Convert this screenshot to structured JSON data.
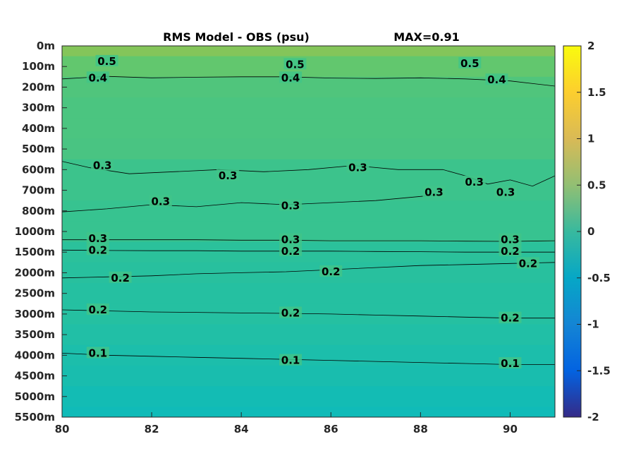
{
  "chart_data": {
    "type": "heatmap",
    "title": "RMS Model - OBS (psu)",
    "max_label": "MAX=0.91",
    "xlabel": "",
    "ylabel": "",
    "xlim": [
      80,
      91
    ],
    "x_ticks": [
      80,
      82,
      84,
      86,
      88,
      90
    ],
    "y_ticks": [
      "0m",
      "100m",
      "200m",
      "300m",
      "400m",
      "500m",
      "600m",
      "700m",
      "800m",
      "1000m",
      "1500m",
      "2000m",
      "2500m",
      "3000m",
      "3500m",
      "4000m",
      "4500m",
      "5000m",
      "5500m"
    ],
    "colorbar": {
      "ticks": [
        "2",
        "1.5",
        "1",
        "0.5",
        "0",
        "-0.5",
        "-1",
        "-1.5",
        "-2"
      ],
      "range": [
        -2,
        2
      ],
      "colormap": "parula"
    },
    "field_by_depth": [
      {
        "depth": "0m",
        "value": 0.62
      },
      {
        "depth": "100m",
        "value": 0.45
      },
      {
        "depth": "200m",
        "value": 0.38
      },
      {
        "depth": "300m",
        "value": 0.36
      },
      {
        "depth": "400m",
        "value": 0.36
      },
      {
        "depth": "500m",
        "value": 0.35
      },
      {
        "depth": "600m",
        "value": 0.3
      },
      {
        "depth": "700m",
        "value": 0.3
      },
      {
        "depth": "800m",
        "value": 0.28
      },
      {
        "depth": "1000m",
        "value": 0.28
      },
      {
        "depth": "1500m",
        "value": 0.22
      },
      {
        "depth": "2000m",
        "value": 0.2
      },
      {
        "depth": "2500m",
        "value": 0.18
      },
      {
        "depth": "3000m",
        "value": 0.18
      },
      {
        "depth": "3500m",
        "value": 0.15
      },
      {
        "depth": "4000m",
        "value": 0.12
      },
      {
        "depth": "4500m",
        "value": 0.1
      },
      {
        "depth": "5000m",
        "value": 0.06
      },
      {
        "depth": "5500m",
        "value": 0.04
      }
    ],
    "contour_labels": [
      {
        "text": "0.5",
        "x": 81.0,
        "depth_index": 0.75
      },
      {
        "text": "0.5",
        "x": 85.2,
        "depth_index": 0.9
      },
      {
        "text": "0.5",
        "x": 89.1,
        "depth_index": 0.85
      },
      {
        "text": "0.4",
        "x": 80.8,
        "depth_index": 1.55
      },
      {
        "text": "0.4",
        "x": 85.1,
        "depth_index": 1.55
      },
      {
        "text": "0.4",
        "x": 89.7,
        "depth_index": 1.65
      },
      {
        "text": "0.3",
        "x": 80.9,
        "depth_index": 5.8
      },
      {
        "text": "0.3",
        "x": 83.7,
        "depth_index": 6.3
      },
      {
        "text": "0.3",
        "x": 86.6,
        "depth_index": 5.9
      },
      {
        "text": "0.3",
        "x": 88.3,
        "depth_index": 7.1
      },
      {
        "text": "0.3",
        "x": 89.2,
        "depth_index": 6.6
      },
      {
        "text": "0.3",
        "x": 89.9,
        "depth_index": 7.1
      },
      {
        "text": "0.3",
        "x": 82.2,
        "depth_index": 7.55
      },
      {
        "text": "0.3",
        "x": 85.1,
        "depth_index": 7.75
      },
      {
        "text": "0.3",
        "x": 80.8,
        "depth_index": 9.35
      },
      {
        "text": "0.3",
        "x": 85.1,
        "depth_index": 9.4
      },
      {
        "text": "0.3",
        "x": 90.0,
        "depth_index": 9.4
      },
      {
        "text": "0.2",
        "x": 80.8,
        "depth_index": 9.9
      },
      {
        "text": "0.2",
        "x": 85.1,
        "depth_index": 9.95
      },
      {
        "text": "0.2",
        "x": 90.0,
        "depth_index": 9.95
      },
      {
        "text": "0.2",
        "x": 90.4,
        "depth_index": 10.55
      },
      {
        "text": "0.2",
        "x": 86.0,
        "depth_index": 10.95
      },
      {
        "text": "0.2",
        "x": 81.3,
        "depth_index": 11.25
      },
      {
        "text": "0.2",
        "x": 80.8,
        "depth_index": 12.8
      },
      {
        "text": "0.2",
        "x": 85.1,
        "depth_index": 12.95
      },
      {
        "text": "0.2",
        "x": 90.0,
        "depth_index": 13.2
      },
      {
        "text": "0.1",
        "x": 80.8,
        "depth_index": 14.9
      },
      {
        "text": "0.1",
        "x": 85.1,
        "depth_index": 15.25
      },
      {
        "text": "0.1",
        "x": 90.0,
        "depth_index": 15.4
      }
    ],
    "contour_lines": [
      {
        "level": 0.4,
        "points": [
          [
            80,
            1.6
          ],
          [
            81,
            1.48
          ],
          [
            82,
            1.55
          ],
          [
            83,
            1.52
          ],
          [
            84,
            1.5
          ],
          [
            85,
            1.5
          ],
          [
            86,
            1.56
          ],
          [
            87,
            1.58
          ],
          [
            88,
            1.55
          ],
          [
            89,
            1.6
          ],
          [
            90,
            1.7
          ],
          [
            91,
            1.95
          ]
        ]
      },
      {
        "level": 0.3,
        "points": [
          [
            80,
            5.6
          ],
          [
            80.6,
            5.9
          ],
          [
            81.5,
            6.2
          ],
          [
            82.5,
            6.1
          ],
          [
            83.5,
            6.0
          ],
          [
            84.5,
            6.1
          ],
          [
            85.5,
            6.0
          ],
          [
            86.5,
            5.8
          ],
          [
            87.5,
            6.0
          ],
          [
            88.5,
            6.0
          ],
          [
            89,
            6.3
          ],
          [
            89.5,
            6.7
          ],
          [
            90,
            6.5
          ],
          [
            90.5,
            6.8
          ],
          [
            91,
            6.3
          ]
        ]
      },
      {
        "level": 0.3,
        "points": [
          [
            80,
            8.05
          ],
          [
            81,
            7.9
          ],
          [
            82,
            7.7
          ],
          [
            83,
            7.8
          ],
          [
            84,
            7.6
          ],
          [
            85,
            7.7
          ],
          [
            86,
            7.6
          ],
          [
            87,
            7.5
          ],
          [
            88,
            7.3
          ],
          [
            88.5,
            7.2
          ]
        ]
      },
      {
        "level": 0.3,
        "points": [
          [
            80,
            9.4
          ],
          [
            81,
            9.4
          ],
          [
            82,
            9.4
          ],
          [
            83,
            9.4
          ],
          [
            84,
            9.42
          ],
          [
            85,
            9.42
          ],
          [
            86,
            9.45
          ],
          [
            87,
            9.45
          ],
          [
            88,
            9.45
          ],
          [
            89,
            9.47
          ],
          [
            90,
            9.48
          ],
          [
            91,
            9.45
          ]
        ]
      },
      {
        "level": 0.2,
        "points": [
          [
            80,
            9.9
          ],
          [
            81,
            9.92
          ],
          [
            82,
            9.93
          ],
          [
            83,
            9.93
          ],
          [
            84,
            9.95
          ],
          [
            85,
            9.95
          ],
          [
            86,
            9.95
          ],
          [
            87,
            9.97
          ],
          [
            88,
            9.98
          ],
          [
            89,
            10.0
          ],
          [
            90,
            10.0
          ],
          [
            91,
            10.0
          ]
        ]
      },
      {
        "level": 0.2,
        "points": [
          [
            80,
            11.25
          ],
          [
            81,
            11.2
          ],
          [
            82,
            11.15
          ],
          [
            83,
            11.05
          ],
          [
            84,
            11.0
          ],
          [
            85,
            10.95
          ],
          [
            86,
            10.85
          ],
          [
            87,
            10.75
          ],
          [
            88,
            10.65
          ],
          [
            89,
            10.6
          ],
          [
            90,
            10.55
          ],
          [
            91,
            10.5
          ]
        ]
      },
      {
        "level": 0.2,
        "points": [
          [
            80,
            12.8
          ],
          [
            81,
            12.85
          ],
          [
            82,
            12.9
          ],
          [
            83,
            12.92
          ],
          [
            84,
            12.95
          ],
          [
            85,
            12.97
          ],
          [
            86,
            13.0
          ],
          [
            87,
            13.05
          ],
          [
            88,
            13.1
          ],
          [
            89,
            13.15
          ],
          [
            90,
            13.2
          ],
          [
            91,
            13.2
          ]
        ]
      },
      {
        "level": 0.1,
        "points": [
          [
            80,
            14.9
          ],
          [
            81,
            15.0
          ],
          [
            82,
            15.05
          ],
          [
            83,
            15.1
          ],
          [
            84,
            15.15
          ],
          [
            85,
            15.2
          ],
          [
            86,
            15.25
          ],
          [
            87,
            15.3
          ],
          [
            88,
            15.35
          ],
          [
            89,
            15.4
          ],
          [
            90,
            15.45
          ],
          [
            91,
            15.45
          ]
        ]
      }
    ],
    "grid": false,
    "legend": "colorbar-right"
  }
}
